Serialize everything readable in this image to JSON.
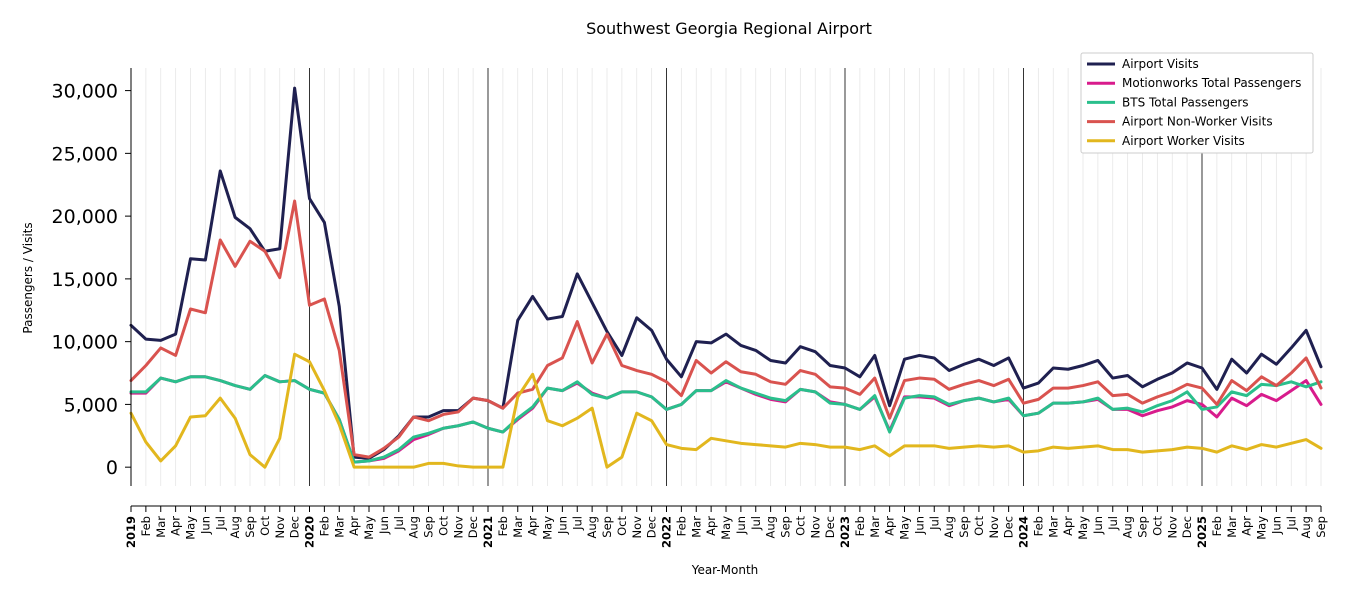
{
  "chart_data": {
    "type": "line",
    "title": "Southwest Georgia Regional Airport",
    "xlabel": "Year-Month",
    "ylabel": "Passengers / Visits",
    "ylim": [
      -1500,
      31800
    ],
    "yticks": [
      0,
      5000,
      10000,
      15000,
      20000,
      25000,
      30000
    ],
    "ytick_labels": [
      "0",
      "5,000",
      "10,000",
      "15,000",
      "20,000",
      "25,000",
      "30,000"
    ],
    "grid": true,
    "legend_position": "top-right",
    "x": [
      "2019-01",
      "2019-02",
      "2019-03",
      "2019-04",
      "2019-05",
      "2019-06",
      "2019-07",
      "2019-08",
      "2019-09",
      "2019-10",
      "2019-11",
      "2019-12",
      "2020-01",
      "2020-02",
      "2020-03",
      "2020-04",
      "2020-05",
      "2020-06",
      "2020-07",
      "2020-08",
      "2020-09",
      "2020-10",
      "2020-11",
      "2020-12",
      "2021-01",
      "2021-02",
      "2021-03",
      "2021-04",
      "2021-05",
      "2021-06",
      "2021-07",
      "2021-08",
      "2021-09",
      "2021-10",
      "2021-11",
      "2021-12",
      "2022-01",
      "2022-02",
      "2022-03",
      "2022-04",
      "2022-05",
      "2022-06",
      "2022-07",
      "2022-08",
      "2022-09",
      "2022-10",
      "2022-11",
      "2022-12",
      "2023-01",
      "2023-02",
      "2023-03",
      "2023-04",
      "2023-05",
      "2023-06",
      "2023-07",
      "2023-08",
      "2023-09",
      "2023-10",
      "2023-11",
      "2023-12",
      "2024-01",
      "2024-02",
      "2024-03",
      "2024-04",
      "2024-05",
      "2024-06",
      "2024-07",
      "2024-08",
      "2024-09",
      "2024-10",
      "2024-11",
      "2024-12",
      "2025-01",
      "2025-02",
      "2025-03",
      "2025-04",
      "2025-05",
      "2025-06",
      "2025-07",
      "2025-08",
      "2025-09"
    ],
    "tick_labels": [
      "2019",
      "Feb",
      "Mar",
      "Apr",
      "May",
      "Jun",
      "Jul",
      "Aug",
      "Sep",
      "Oct",
      "Nov",
      "Dec",
      "2020",
      "Feb",
      "Mar",
      "Apr",
      "May",
      "Jun",
      "Jul",
      "Aug",
      "Sep",
      "Oct",
      "Nov",
      "Dec",
      "2021",
      "Feb",
      "Mar",
      "Apr",
      "May",
      "Jun",
      "Jul",
      "Aug",
      "Sep",
      "Oct",
      "Nov",
      "Dec",
      "2022",
      "Feb",
      "Mar",
      "Apr",
      "May",
      "Jun",
      "Jul",
      "Aug",
      "Sep",
      "Oct",
      "Nov",
      "Dec",
      "2023",
      "Feb",
      "Mar",
      "Apr",
      "May",
      "Jun",
      "Jul",
      "Aug",
      "Sep",
      "Oct",
      "Nov",
      "Dec",
      "2024",
      "Feb",
      "Mar",
      "Apr",
      "May",
      "Jun",
      "Jul",
      "Aug",
      "Sep",
      "Oct",
      "Nov",
      "Dec",
      "2025",
      "Feb",
      "Mar",
      "Apr",
      "May",
      "Jun",
      "Jul",
      "Aug",
      "Sep"
    ],
    "series": [
      {
        "name": "Airport Visits",
        "color": "#1f2050",
        "values": [
          11300,
          10200,
          10100,
          10600,
          16600,
          16500,
          23600,
          19900,
          19000,
          17200,
          17400,
          30200,
          21400,
          19500,
          12800,
          800,
          700,
          1400,
          2500,
          4000,
          4000,
          4500,
          4500,
          5500,
          5300,
          4700,
          11700,
          13600,
          11800,
          12000,
          15400,
          13100,
          10800,
          8900,
          11900,
          10900,
          8600,
          7200,
          10000,
          9900,
          10600,
          9700,
          9300,
          8500,
          8300,
          9600,
          9200,
          8100,
          7900,
          7200,
          8900,
          4900,
          8600,
          8900,
          8700,
          7700,
          8200,
          8600,
          8100,
          8700,
          6300,
          6700,
          7900,
          7800,
          8100,
          8500,
          7100,
          7300,
          6400,
          7000,
          7500,
          8300,
          7900,
          6200,
          8600,
          7500,
          9000,
          8200,
          9500,
          10900,
          8000
        ]
      },
      {
        "name": "Motionworks Total Passengers",
        "color": "#d81b8c",
        "values": [
          5900,
          5900,
          7100,
          6800,
          7200,
          7200,
          6900,
          6500,
          6200,
          7300,
          6800,
          6900,
          6200,
          5900,
          3800,
          400,
          500,
          700,
          1300,
          2200,
          2600,
          3100,
          3300,
          3600,
          3100,
          2800,
          3800,
          4700,
          6300,
          6100,
          6700,
          5900,
          5500,
          6000,
          6000,
          5600,
          4600,
          5000,
          6100,
          6100,
          6800,
          6300,
          5800,
          5400,
          5200,
          6200,
          6000,
          5200,
          5000,
          4600,
          5600,
          2900,
          5600,
          5600,
          5500,
          4900,
          5300,
          5500,
          5200,
          5400,
          4100,
          4300,
          5100,
          5100,
          5200,
          5400,
          4600,
          4600,
          4100,
          4500,
          4800,
          5300,
          5000,
          4000,
          5500,
          4900,
          5800,
          5300,
          6100,
          6900,
          5000
        ]
      },
      {
        "name": "BTS Total Passengers",
        "color": "#2abf8c",
        "values": [
          6000,
          6000,
          7100,
          6800,
          7200,
          7200,
          6900,
          6500,
          6200,
          7300,
          6800,
          6900,
          6200,
          5900,
          3800,
          400,
          500,
          800,
          1400,
          2400,
          2700,
          3100,
          3300,
          3600,
          3100,
          2800,
          3900,
          4800,
          6300,
          6100,
          6800,
          5800,
          5500,
          6000,
          6000,
          5600,
          4600,
          5000,
          6100,
          6100,
          6900,
          6300,
          5900,
          5500,
          5300,
          6200,
          6000,
          5100,
          5000,
          4600,
          5700,
          2800,
          5500,
          5700,
          5600,
          5000,
          5300,
          5500,
          5200,
          5500,
          4100,
          4300,
          5100,
          5100,
          5200,
          5500,
          4600,
          4700,
          4400,
          4900,
          5300,
          6000,
          4600,
          4800,
          6000,
          5700,
          6600,
          6500,
          6800,
          6400,
          6800
        ]
      },
      {
        "name": "Airport Non-Worker Visits",
        "color": "#d9534f",
        "values": [
          6900,
          8100,
          9500,
          8900,
          12600,
          12300,
          18100,
          16000,
          18000,
          17200,
          15100,
          21200,
          12900,
          13400,
          9300,
          1000,
          800,
          1500,
          2400,
          4000,
          3700,
          4200,
          4400,
          5500,
          5300,
          4700,
          5900,
          6200,
          8100,
          8700,
          11600,
          8300,
          10600,
          8100,
          7700,
          7400,
          6800,
          5700,
          8500,
          7500,
          8400,
          7600,
          7400,
          6800,
          6600,
          7700,
          7400,
          6400,
          6300,
          5800,
          7100,
          3900,
          6900,
          7100,
          7000,
          6200,
          6600,
          6900,
          6500,
          7000,
          5100,
          5400,
          6300,
          6300,
          6500,
          6800,
          5700,
          5800,
          5100,
          5600,
          6000,
          6600,
          6300,
          5000,
          6900,
          6100,
          7200,
          6500,
          7500,
          8700,
          6300
        ]
      },
      {
        "name": "Airport Worker Visits",
        "color": "#e2b71e",
        "values": [
          4300,
          2000,
          500,
          1700,
          4000,
          4100,
          5500,
          3900,
          1000,
          0,
          2300,
          9000,
          8400,
          6100,
          3400,
          0,
          0,
          0,
          0,
          0,
          300,
          300,
          100,
          0,
          0,
          0,
          5600,
          7400,
          3700,
          3300,
          3900,
          4700,
          0,
          800,
          4300,
          3700,
          1800,
          1500,
          1400,
          2300,
          2100,
          1900,
          1800,
          1700,
          1600,
          1900,
          1800,
          1600,
          1600,
          1400,
          1700,
          900,
          1700,
          1700,
          1700,
          1500,
          1600,
          1700,
          1600,
          1700,
          1200,
          1300,
          1600,
          1500,
          1600,
          1700,
          1400,
          1400,
          1200,
          1300,
          1400,
          1600,
          1500,
          1200,
          1700,
          1400,
          1800,
          1600,
          1900,
          2200,
          1500
        ]
      }
    ]
  }
}
